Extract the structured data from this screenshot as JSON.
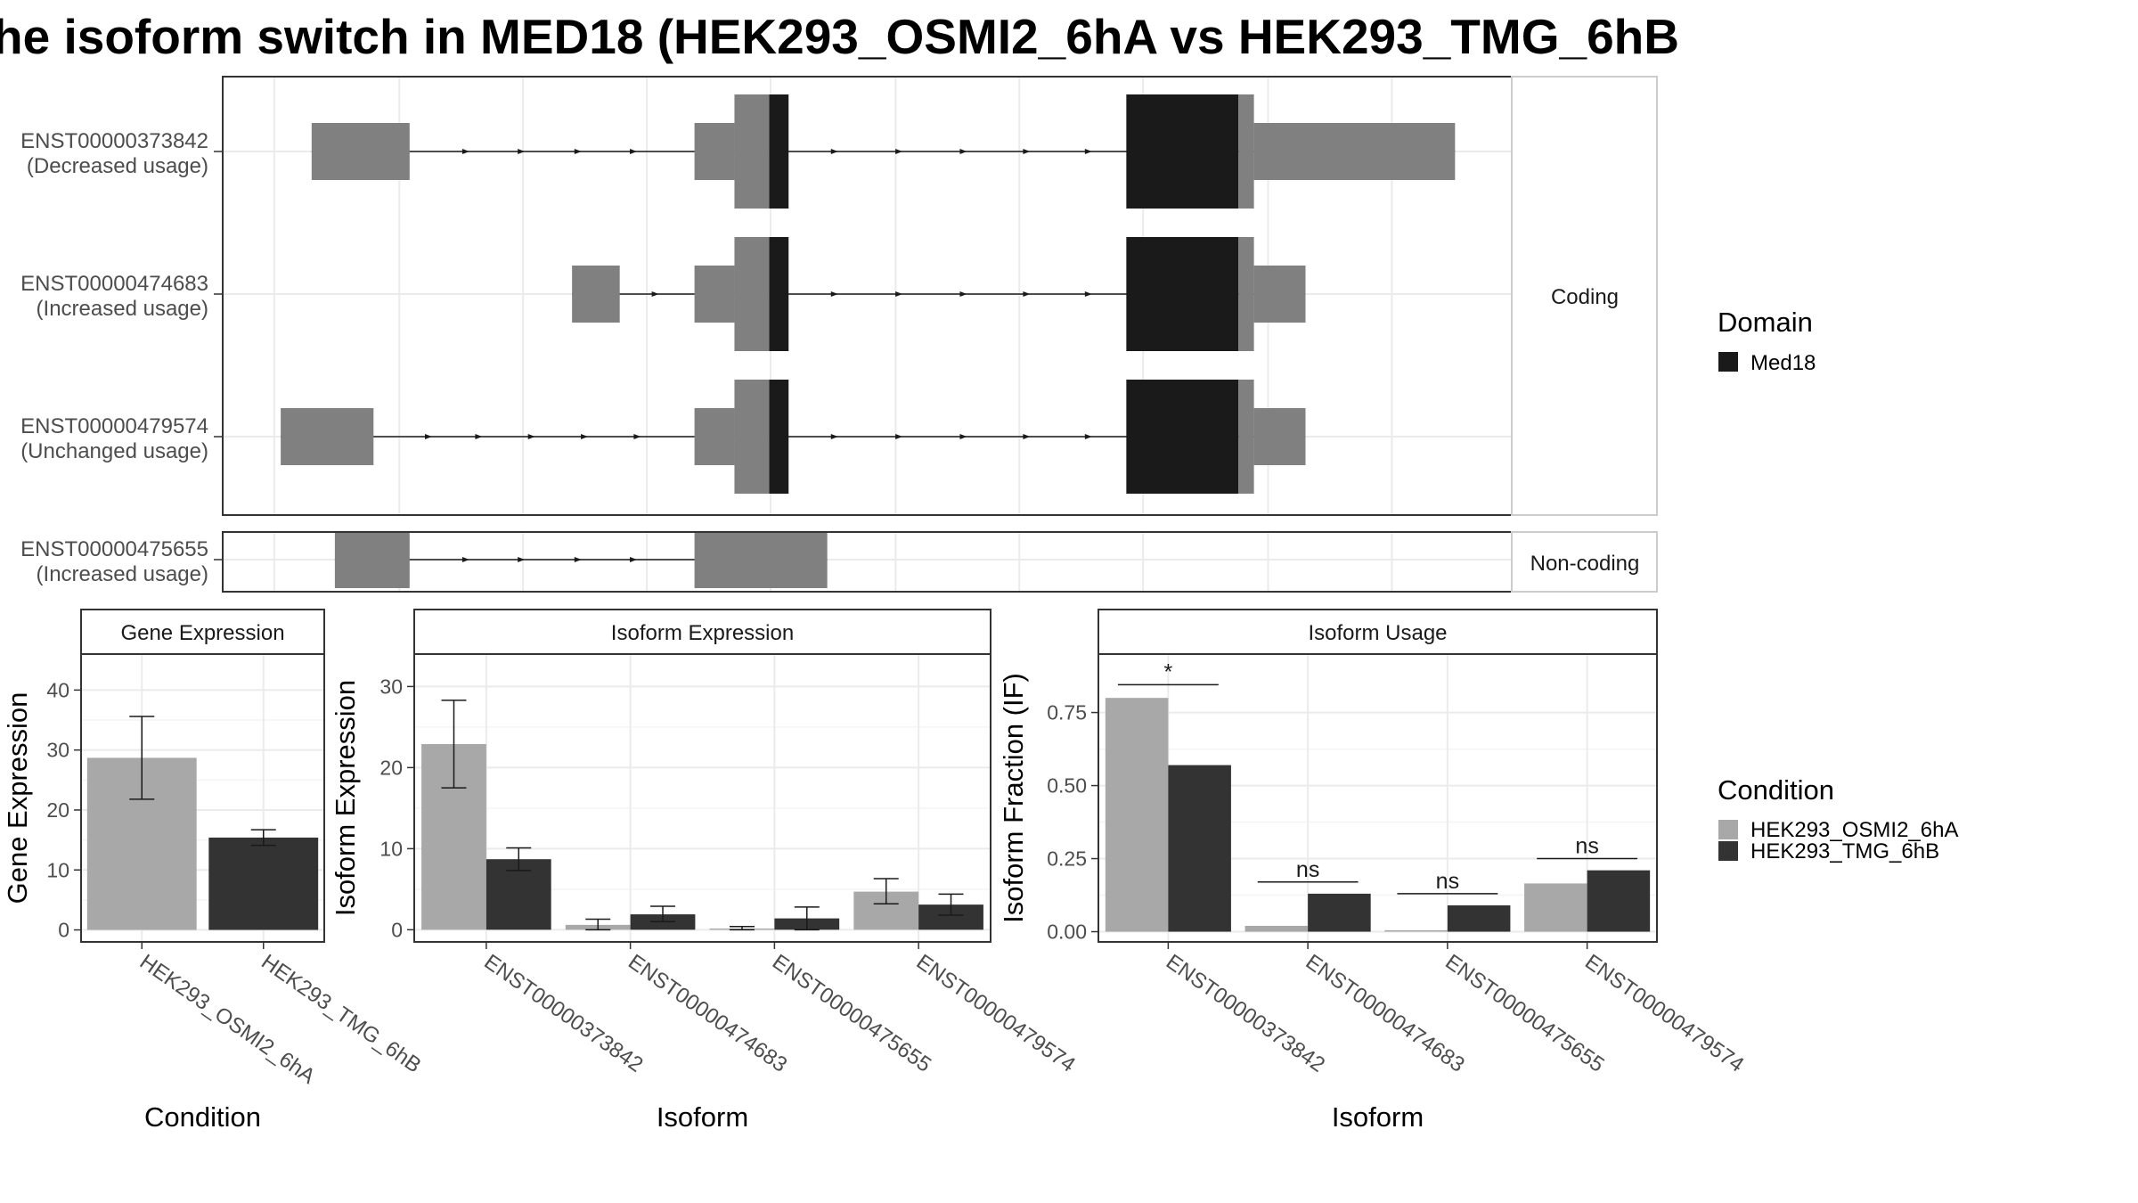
{
  "title": "he isoform switch in MED18 (HEK293_OSMI2_6hA vs HEK293_TMG_6hB",
  "colors": {
    "utr": "#808080",
    "domain": "#1a1a1a",
    "cond_a": "#a8a8a8",
    "cond_b": "#333333",
    "grid": "#ebebeb",
    "axis_text": "#4d4d4d",
    "strip_text": "#1a1a1a"
  },
  "structure": {
    "coding_label": "Coding",
    "noncoding_label": "Non-coding",
    "transcripts": [
      {
        "id": "ENST00000373842",
        "usage": "(Decreased usage)",
        "group": "coding",
        "segments": [
          {
            "start": 0.069,
            "end": 0.145,
            "kind": "utr",
            "size": "large"
          },
          {
            "start": 0.366,
            "end": 0.397,
            "kind": "utr",
            "size": "large"
          },
          {
            "start": 0.397,
            "end": 0.424,
            "kind": "utr",
            "size": "xlarge"
          },
          {
            "start": 0.424,
            "end": 0.439,
            "kind": "domain",
            "size": "xlarge"
          },
          {
            "start": 0.701,
            "end": 0.788,
            "kind": "domain",
            "size": "xlarge"
          },
          {
            "start": 0.788,
            "end": 0.8,
            "kind": "utr",
            "size": "xlarge"
          },
          {
            "start": 0.8,
            "end": 0.956,
            "kind": "utr",
            "size": "large"
          }
        ],
        "arrows": [
          0.19,
          0.233,
          0.277,
          0.32,
          0.476,
          0.526,
          0.576,
          0.625,
          0.673
        ]
      },
      {
        "id": "ENST00000474683",
        "usage": "(Increased usage)",
        "group": "coding",
        "segments": [
          {
            "start": 0.271,
            "end": 0.308,
            "kind": "utr",
            "size": "large"
          },
          {
            "start": 0.366,
            "end": 0.397,
            "kind": "utr",
            "size": "large"
          },
          {
            "start": 0.397,
            "end": 0.424,
            "kind": "utr",
            "size": "xlarge"
          },
          {
            "start": 0.424,
            "end": 0.439,
            "kind": "domain",
            "size": "xlarge"
          },
          {
            "start": 0.701,
            "end": 0.788,
            "kind": "domain",
            "size": "xlarge"
          },
          {
            "start": 0.788,
            "end": 0.8,
            "kind": "utr",
            "size": "xlarge"
          },
          {
            "start": 0.8,
            "end": 0.84,
            "kind": "utr",
            "size": "large"
          }
        ],
        "arrows": [
          0.337,
          0.476,
          0.526,
          0.576,
          0.625,
          0.673
        ]
      },
      {
        "id": "ENST00000479574",
        "usage": "(Unchanged usage)",
        "group": "coding",
        "segments": [
          {
            "start": 0.045,
            "end": 0.117,
            "kind": "utr",
            "size": "large"
          },
          {
            "start": 0.366,
            "end": 0.397,
            "kind": "utr",
            "size": "large"
          },
          {
            "start": 0.397,
            "end": 0.424,
            "kind": "utr",
            "size": "xlarge"
          },
          {
            "start": 0.424,
            "end": 0.439,
            "kind": "domain",
            "size": "xlarge"
          },
          {
            "start": 0.701,
            "end": 0.788,
            "kind": "domain",
            "size": "xlarge"
          },
          {
            "start": 0.788,
            "end": 0.8,
            "kind": "utr",
            "size": "xlarge"
          },
          {
            "start": 0.8,
            "end": 0.84,
            "kind": "utr",
            "size": "large"
          }
        ],
        "arrows": [
          0.161,
          0.2,
          0.241,
          0.282,
          0.323,
          0.476,
          0.526,
          0.576,
          0.625,
          0.673
        ]
      },
      {
        "id": "ENST00000475655",
        "usage": "(Increased usage)",
        "group": "noncoding",
        "segments": [
          {
            "start": 0.087,
            "end": 0.145,
            "kind": "utr",
            "size": "large"
          },
          {
            "start": 0.366,
            "end": 0.469,
            "kind": "utr",
            "size": "large"
          }
        ],
        "arrows": [
          0.19,
          0.233,
          0.277,
          0.32
        ]
      }
    ]
  },
  "legend": {
    "domain_title": "Domain",
    "domain_items": [
      {
        "label": "Med18"
      }
    ],
    "condition_title": "Condition",
    "condition_items": [
      {
        "label": "HEK293_OSMI2_6hA"
      },
      {
        "label": "HEK293_TMG_6hB"
      }
    ]
  },
  "chart_data": [
    {
      "type": "bar",
      "strip": "Gene Expression",
      "xlabel": "Condition",
      "ylabel": "Gene Expression",
      "categories": [
        "HEK293_OSMI2_6hA",
        "HEK293_TMG_6hB"
      ],
      "values": [
        28.7,
        15.4
      ],
      "error_low": [
        21.8,
        14.1
      ],
      "error_high": [
        35.6,
        16.7
      ],
      "ylim": [
        -2,
        46
      ],
      "yticks": [
        0,
        10,
        20,
        30,
        40
      ],
      "grid": true
    },
    {
      "type": "bar",
      "strip": "Isoform Expression",
      "xlabel": "Isoform",
      "ylabel": "Isoform Expression",
      "categories": [
        "ENST00000373842",
        "ENST00000474683",
        "ENST00000475655",
        "ENST00000479574"
      ],
      "series": [
        {
          "name": "HEK293_OSMI2_6hA",
          "values": [
            22.9,
            0.6,
            0.15,
            4.7
          ],
          "error_low": [
            17.5,
            0.0,
            0.0,
            3.2
          ],
          "error_high": [
            28.3,
            1.3,
            0.4,
            6.3
          ]
        },
        {
          "name": "HEK293_TMG_6hB",
          "values": [
            8.7,
            1.9,
            1.4,
            3.1
          ],
          "error_low": [
            7.3,
            1.0,
            0.0,
            1.8
          ],
          "error_high": [
            10.1,
            2.9,
            2.8,
            4.4
          ]
        }
      ],
      "ylim": [
        -1.5,
        34
      ],
      "yticks": [
        0,
        10,
        20,
        30
      ],
      "grid": true
    },
    {
      "type": "bar",
      "strip": "Isoform Usage",
      "xlabel": "Isoform",
      "ylabel": "Isoform Fraction (IF)",
      "categories": [
        "ENST00000373842",
        "ENST00000474683",
        "ENST00000475655",
        "ENST00000479574"
      ],
      "series": [
        {
          "name": "HEK293_OSMI2_6hA",
          "values": [
            0.8,
            0.02,
            0.005,
            0.165
          ]
        },
        {
          "name": "HEK293_TMG_6hB",
          "values": [
            0.57,
            0.13,
            0.09,
            0.21
          ]
        }
      ],
      "significance": [
        "*",
        "ns",
        "ns",
        "ns"
      ],
      "sig_level": [
        0.845,
        0.17,
        0.13,
        0.25
      ],
      "ylim": [
        -0.035,
        0.95
      ],
      "yticks": [
        0.0,
        0.25,
        0.5,
        0.75
      ],
      "ytick_labels": [
        "0.00",
        "0.25",
        "0.50",
        "0.75"
      ],
      "grid": true
    }
  ]
}
